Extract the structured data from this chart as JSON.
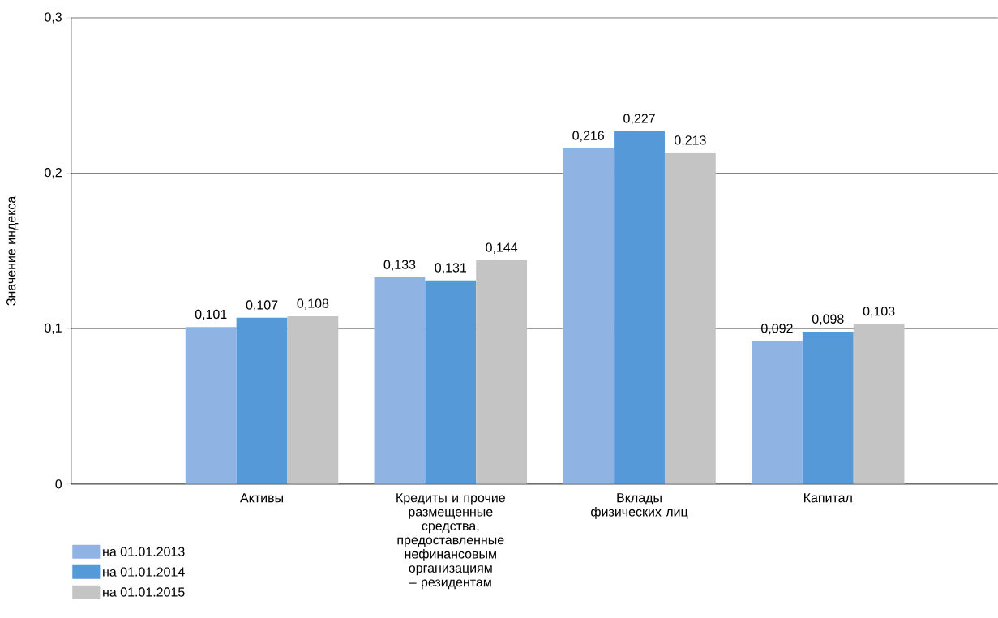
{
  "chart_data": {
    "type": "bar",
    "ylabel": "Значение индекса",
    "categories": [
      "Активы",
      "Кредиты и прочие размещенные средства, предоставленные нефинансовым организациям – резидентам",
      "Вклады физических лиц",
      "Капитал"
    ],
    "series": [
      {
        "name": "на 01.01.2013",
        "color": "#8fb4e3",
        "values": [
          0.101,
          0.133,
          0.216,
          0.092
        ],
        "value_labels": [
          "0,101",
          "0,133",
          "0,216",
          "0,092"
        ]
      },
      {
        "name": "на 01.01.2014",
        "color": "#5599d9",
        "values": [
          0.107,
          0.131,
          0.227,
          0.098
        ],
        "value_labels": [
          "0,107",
          "0,131",
          "0,227",
          "0,098"
        ]
      },
      {
        "name": "на 01.01.2015",
        "color": "#c4c4c4",
        "values": [
          0.108,
          0.144,
          0.213,
          0.103
        ],
        "value_labels": [
          "0,108",
          "0,144",
          "0,213",
          "0,103"
        ]
      }
    ],
    "ylim": [
      0,
      0.3
    ],
    "yticks": [
      {
        "value": 0,
        "label": "0"
      },
      {
        "value": 0.1,
        "label": "0,1"
      },
      {
        "value": 0.2,
        "label": "0,2"
      },
      {
        "value": 0.3,
        "label": "0,3"
      }
    ],
    "grid": "y",
    "legend": "bottom left"
  }
}
